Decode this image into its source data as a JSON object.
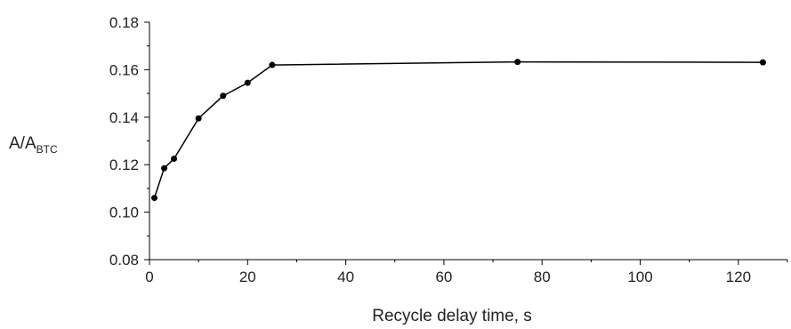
{
  "chart_data": {
    "type": "line",
    "title": "",
    "xlabel": "Recycle delay time, s",
    "ylabel": {
      "main": "A/A",
      "sub": "BTC"
    },
    "xlim": [
      0,
      130
    ],
    "ylim": [
      0.08,
      0.18
    ],
    "x_ticks": [
      "0",
      "20",
      "40",
      "60",
      "80",
      "100",
      "120"
    ],
    "y_ticks": [
      "0.08",
      "0.10",
      "0.12",
      "0.14",
      "0.16",
      "0.18"
    ],
    "grid": false,
    "legend": "none",
    "series": [
      {
        "x": [
          1,
          3,
          5,
          10,
          15,
          20,
          25,
          75,
          125
        ],
        "y": [
          0.106,
          0.1185,
          0.1225,
          0.1395,
          0.149,
          0.1545,
          0.162,
          0.1633,
          0.1631
        ]
      }
    ],
    "colors": {
      "line": "#000000",
      "axis": "#000000"
    }
  }
}
